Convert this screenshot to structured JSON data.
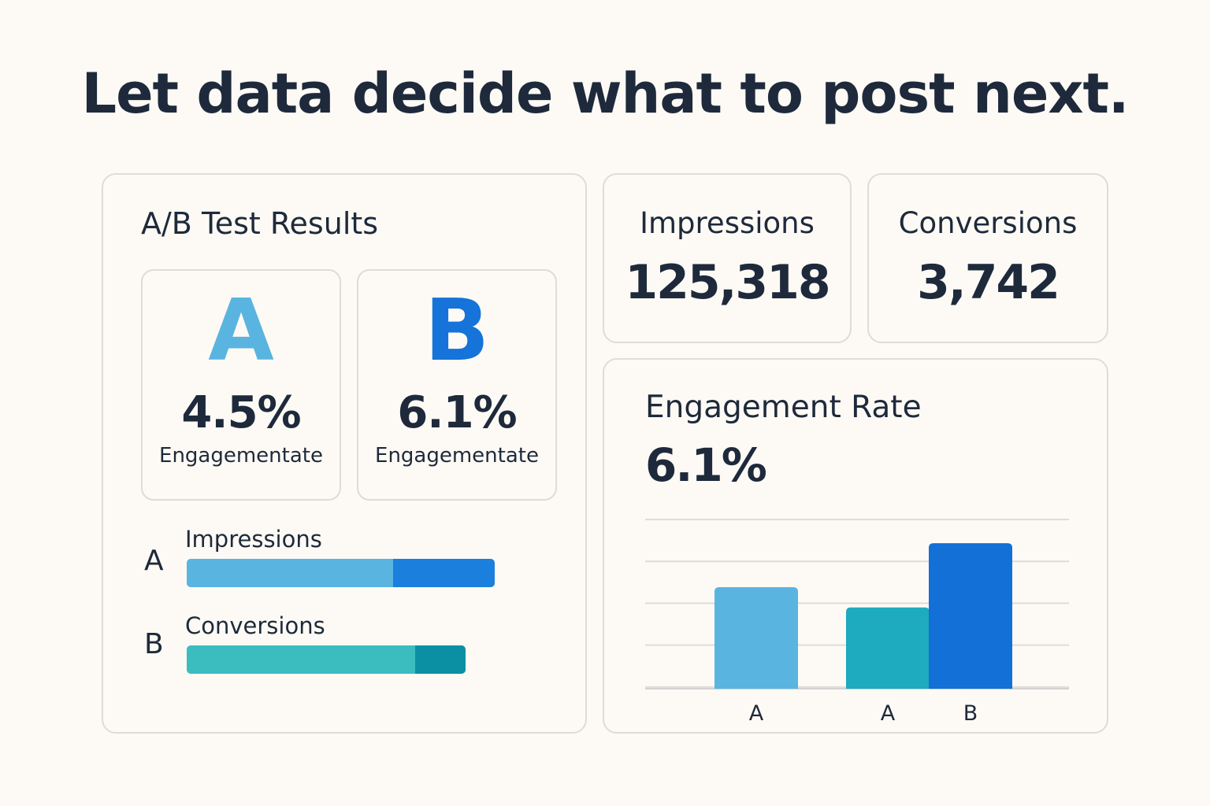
{
  "headline": "Let data decide what to post next.",
  "ab_test": {
    "title": "A/B Test Results",
    "variants": [
      {
        "letter": "A",
        "rate": "4.5%",
        "label": "Engagementate",
        "color": "#5ab4e0"
      },
      {
        "letter": "B",
        "rate": "6.1%",
        "label": "Engagementate",
        "color": "#1573d9"
      }
    ],
    "bars": [
      {
        "letter": "A",
        "title": "Impressions",
        "fill_fraction": 0.67,
        "color_main": "#5ab4e0",
        "color_accent": "#1a7fdd"
      },
      {
        "letter": "B",
        "title": "Conversions",
        "fill_fraction": 0.82,
        "color_main": "#3bbcbf",
        "color_accent": "#0a8fa3"
      }
    ]
  },
  "kpis": {
    "impressions": {
      "label": "Impressions",
      "value": "125,318"
    },
    "conversions": {
      "label": "Conversions",
      "value": "3,742"
    }
  },
  "engagement": {
    "title": "Engagement Rate",
    "value": "6.1%"
  },
  "chart_data": {
    "type": "bar",
    "title": "Engagement Rate",
    "categories": [
      "A",
      "A",
      "B"
    ],
    "values": [
      3.0,
      2.4,
      4.3
    ],
    "colors": [
      "#5ab4e0",
      "#1eaabf",
      "#1270d6"
    ],
    "ylim": [
      0,
      5
    ],
    "grid": true,
    "xlabel": "",
    "ylabel": ""
  }
}
